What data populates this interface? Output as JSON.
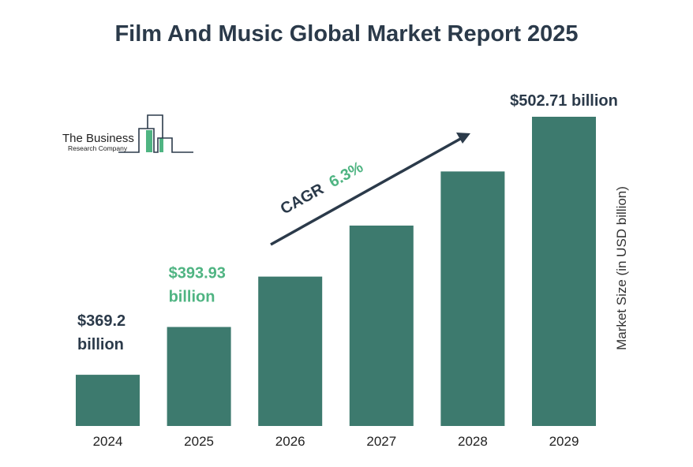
{
  "chart_data": {
    "type": "bar",
    "title": "Film And Music Global Market Report 2025",
    "categories": [
      "2024",
      "2025",
      "2026",
      "2027",
      "2028",
      "2029"
    ],
    "values": [
      369.2,
      393.93,
      420.0,
      446.4,
      474.4,
      502.71
    ],
    "value_labels": [
      {
        "index": 0,
        "lines": [
          "$369.2",
          "billion"
        ],
        "color": "#2b3a4a"
      },
      {
        "index": 1,
        "lines": [
          "$393.93",
          "billion"
        ],
        "color": "#4fb482"
      },
      {
        "index": 5,
        "lines": [
          "$502.71 billion"
        ],
        "color": "#2b3a4a"
      }
    ],
    "ylabel": "Market Size (in USD billion)",
    "xlabel": "",
    "ylim": [
      342.7,
      520
    ],
    "grid": false,
    "annotation": {
      "prefix": "CAGR",
      "value": "6.3%"
    },
    "colors": {
      "bar": "#3d7a6e",
      "title": "#2b3a4a",
      "accent": "#4fb482"
    }
  },
  "logo": {
    "line1": "The Business",
    "line2": "Research Company"
  }
}
